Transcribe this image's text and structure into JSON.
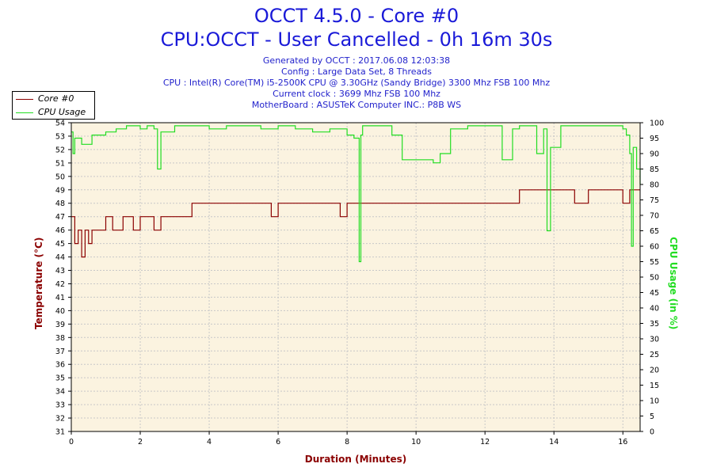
{
  "title": "OCCT 4.5.0 - Core #0",
  "subtitle": "CPU:OCCT - User Cancelled - 0h 16m 30s",
  "info": {
    "generated": "Generated by OCCT : 2017.06.08 12:03:38",
    "config": "Config : Large Data Set, 8 Threads",
    "cpu": "CPU : Intel(R) Core(TM) i5-2500K CPU @ 3.30GHz (Sandy Bridge) 3300 Mhz FSB 100 Mhz",
    "clock": "Current clock : 3699 Mhz FSB 100 Mhz",
    "motherboard": "MotherBoard : ASUSTeK Computer INC.: P8B WS"
  },
  "colors": {
    "temperature": "#8b0000",
    "cpu_usage": "#22dd22",
    "plot_bg": "#fbf3e0",
    "grid": "#c8c8c8",
    "title": "#1a1ad8"
  },
  "chart_data": {
    "type": "line",
    "xlabel": "Duration (Minutes)",
    "ylabel_left": "Temperature (°C)",
    "ylabel_right": "CPU Usage (in %)",
    "xlim": [
      0,
      16.5
    ],
    "ylim_left": [
      31,
      54
    ],
    "ylim_right": [
      0,
      100
    ],
    "x_ticks": [
      0,
      2,
      4,
      6,
      8,
      10,
      12,
      14,
      16
    ],
    "y_ticks_left": [
      31,
      32,
      33,
      34,
      35,
      36,
      37,
      38,
      39,
      40,
      41,
      42,
      43,
      44,
      45,
      46,
      47,
      48,
      49,
      50,
      51,
      52,
      53,
      54
    ],
    "y_ticks_right": [
      0,
      5,
      10,
      15,
      20,
      25,
      30,
      35,
      40,
      45,
      50,
      55,
      60,
      65,
      70,
      75,
      80,
      85,
      90,
      95,
      100
    ],
    "grid": true,
    "legend_position": "top-left",
    "series": [
      {
        "name": "Core #0",
        "axis": "left",
        "x": [
          0,
          0.1,
          0.2,
          0.3,
          0.4,
          0.5,
          0.6,
          0.8,
          1.0,
          1.2,
          1.5,
          1.8,
          2.0,
          2.2,
          2.4,
          2.6,
          2.8,
          3.0,
          3.2,
          3.5,
          3.7,
          4.0,
          4.3,
          4.6,
          5.0,
          5.4,
          5.8,
          6.0,
          6.2,
          6.5,
          6.8,
          7.0,
          7.3,
          7.6,
          7.8,
          8.0,
          8.3,
          8.6,
          9.0,
          9.4,
          9.8,
          10.2,
          10.6,
          11.0,
          11.4,
          11.8,
          12.2,
          12.6,
          13.0,
          13.4,
          13.8,
          14.2,
          14.6,
          15.0,
          15.4,
          15.8,
          16.0,
          16.2,
          16.4,
          16.5
        ],
        "y": [
          47,
          45,
          46,
          44,
          46,
          45,
          46,
          46,
          47,
          46,
          47,
          46,
          47,
          47,
          46,
          47,
          47,
          47,
          47,
          48,
          48,
          48,
          48,
          48,
          48,
          48,
          47,
          48,
          48,
          48,
          48,
          48,
          48,
          48,
          47,
          48,
          48,
          48,
          48,
          48,
          48,
          48,
          48,
          48,
          48,
          48,
          48,
          48,
          49,
          49,
          49,
          49,
          48,
          49,
          49,
          49,
          48,
          49,
          49,
          49
        ]
      },
      {
        "name": "CPU Usage",
        "axis": "right",
        "x": [
          0,
          0.05,
          0.1,
          0.3,
          0.6,
          1.0,
          1.3,
          1.6,
          2.0,
          2.2,
          2.4,
          2.5,
          2.6,
          3.0,
          3.5,
          4.0,
          4.5,
          5.0,
          5.5,
          6.0,
          6.5,
          7.0,
          7.5,
          8.0,
          8.2,
          8.35,
          8.4,
          8.45,
          8.6,
          9.0,
          9.3,
          9.6,
          10.0,
          10.5,
          10.7,
          11.0,
          11.5,
          12.0,
          12.3,
          12.5,
          12.8,
          13.0,
          13.3,
          13.5,
          13.7,
          13.8,
          13.9,
          14.2,
          14.5,
          14.8,
          15.0,
          15.5,
          16.0,
          16.1,
          16.2,
          16.25,
          16.3,
          16.4,
          16.5
        ],
        "y": [
          97,
          90,
          95,
          93,
          96,
          97,
          98,
          99,
          98,
          99,
          98,
          85,
          97,
          99,
          99,
          98,
          99,
          99,
          98,
          99,
          98,
          97,
          98,
          96,
          95,
          55,
          96,
          99,
          99,
          99,
          96,
          88,
          88,
          87,
          90,
          98,
          99,
          99,
          99,
          88,
          98,
          99,
          99,
          90,
          98,
          65,
          92,
          99,
          99,
          99,
          99,
          99,
          98,
          96,
          90,
          60,
          92,
          85,
          80
        ]
      }
    ]
  }
}
